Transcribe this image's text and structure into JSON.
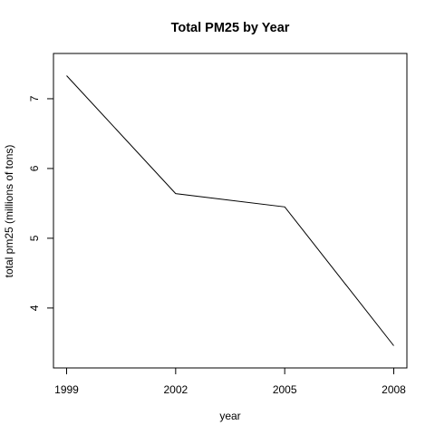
{
  "chart_data": {
    "type": "line",
    "title": "Total PM25 by Year",
    "xlabel": "year",
    "ylabel": "total pm25 (millions of tons)",
    "x": [
      1999,
      2002,
      2005,
      2008
    ],
    "series": [
      {
        "values": [
          7.33,
          5.64,
          5.45,
          3.46
        ]
      }
    ],
    "x_ticks": [
      "1999",
      "2002",
      "2005",
      "2008"
    ],
    "y_ticks": [
      4,
      5,
      6,
      7
    ],
    "xlim": [
      1999,
      2008
    ],
    "ylim": [
      3.31,
      7.48
    ],
    "grid": false,
    "line_color": "#000000"
  }
}
